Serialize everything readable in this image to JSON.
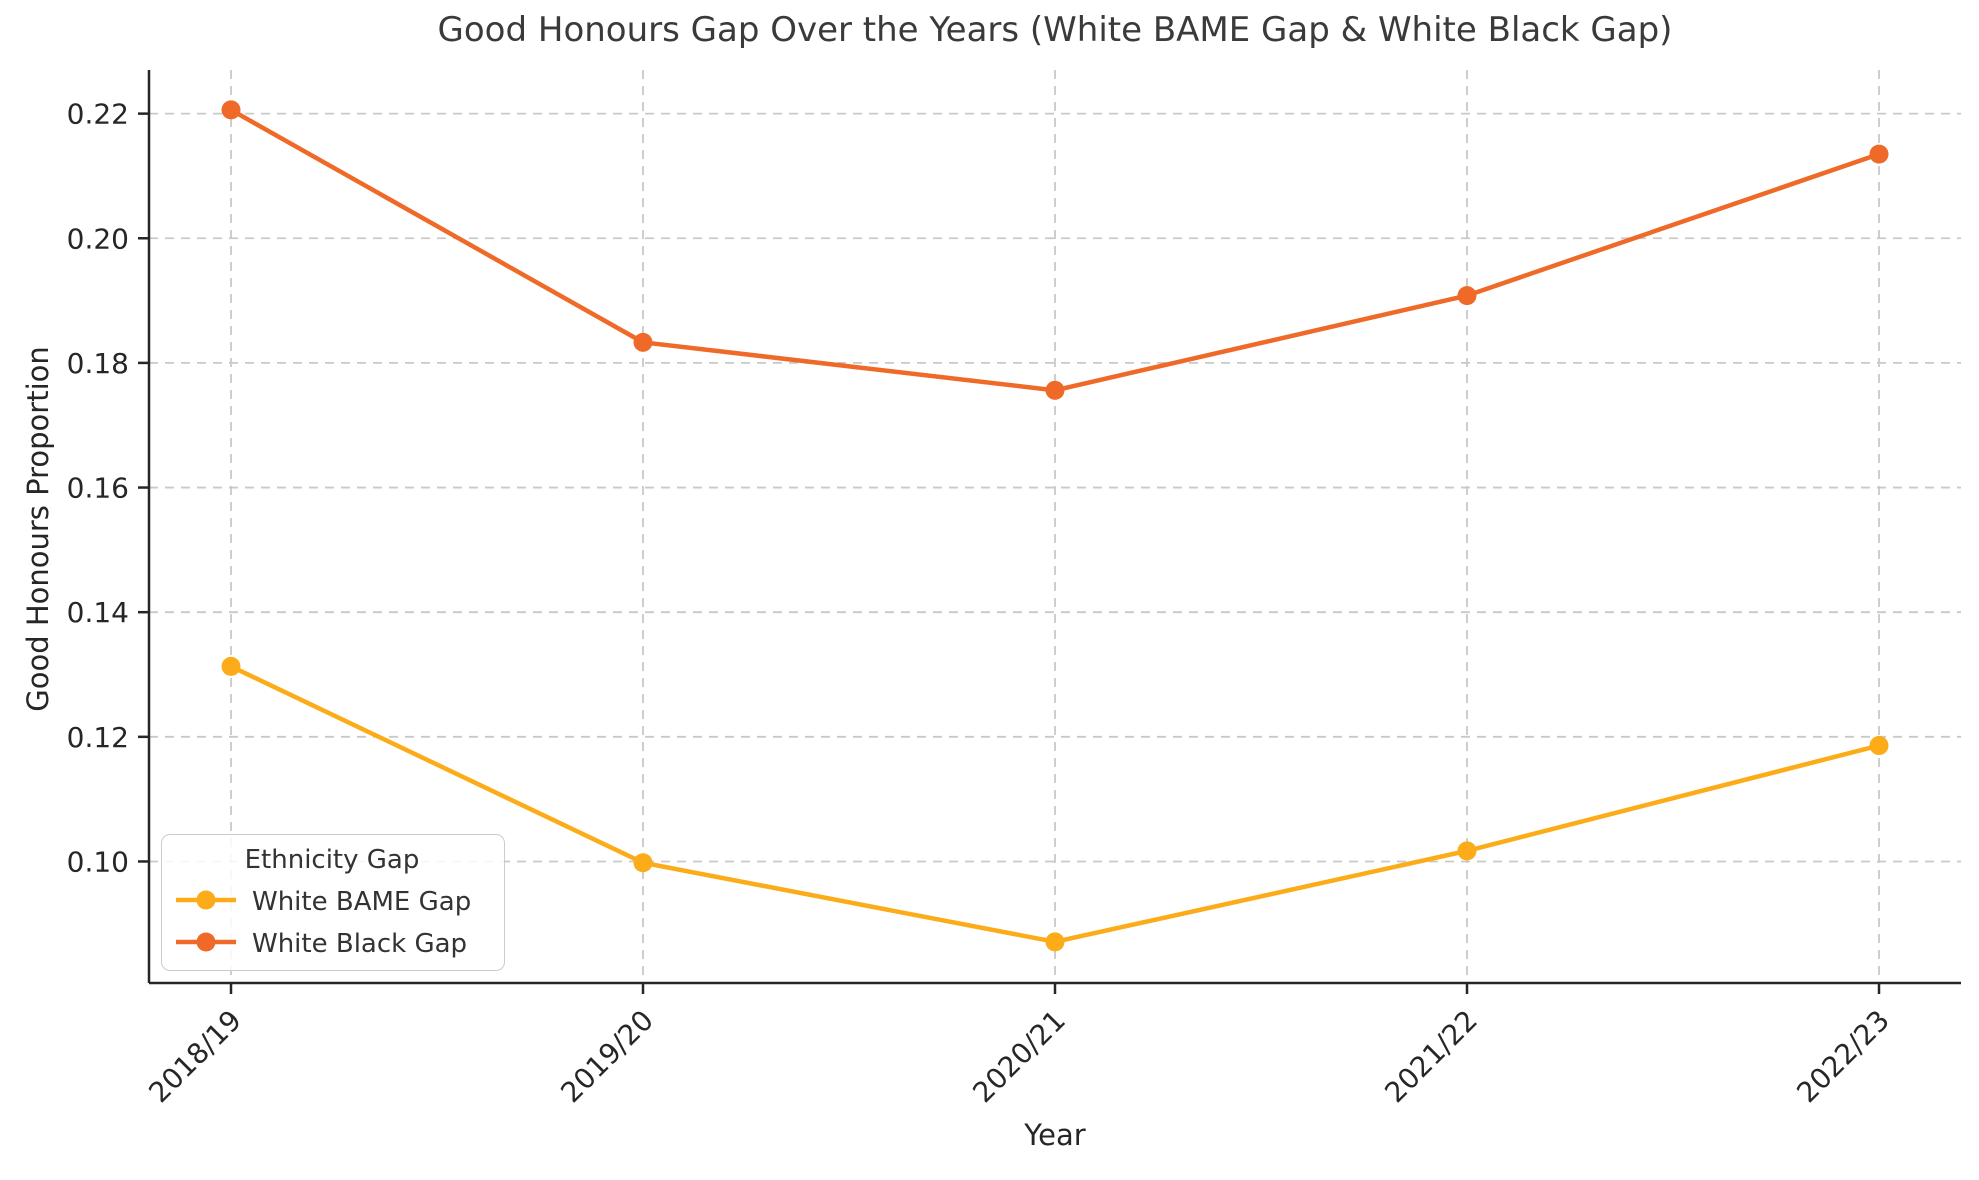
{
  "chart_data": {
    "type": "line",
    "title": "Good Honours Gap Over the Years (White BAME Gap & White Black Gap)",
    "xlabel": "Year",
    "ylabel": "Good Honours Proportion",
    "categories": [
      "2018/19",
      "2019/20",
      "2020/21",
      "2021/22",
      "2022/23"
    ],
    "series": [
      {
        "name": "White BAME Gap",
        "color": "#FBAC18",
        "values": [
          0.1313,
          0.0998,
          0.0871,
          0.1017,
          0.1186
        ]
      },
      {
        "name": "White Black Gap",
        "color": "#EF6A28",
        "values": [
          0.2206,
          0.1833,
          0.1756,
          0.1908,
          0.2135
        ]
      }
    ],
    "yticks": [
      0.1,
      0.12,
      0.14,
      0.16,
      0.18,
      0.2,
      0.22
    ],
    "ylim": [
      0.0805,
      0.227
    ],
    "grid": true,
    "legend": {
      "title": "Ethnicity Gap",
      "position": "lower left"
    },
    "style": {
      "grid_color": "#c9c9c9",
      "spine_color": "#262626",
      "tick_label_color": "#262626",
      "title_color": "#3a3a3a",
      "background": "#ffffff"
    }
  }
}
